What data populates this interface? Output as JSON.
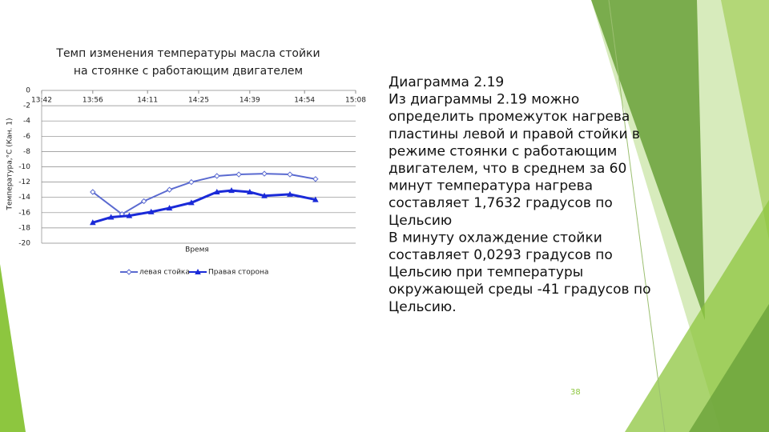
{
  "chart_data": {
    "type": "line",
    "title": [
      "Темп изменения температуры масла стойки",
      "на стоянке с работающим двигателем"
    ],
    "y_label": "Температура,°С (Кан. 1)",
    "x_label": "Время",
    "xlim": [
      "13:42",
      "15:08"
    ],
    "xticks": [
      "13:42",
      "13:56",
      "14:11",
      "14:25",
      "14:39",
      "14:54",
      "15:08"
    ],
    "ylim": [
      -20,
      0
    ],
    "yticks": [
      0,
      -2,
      -4,
      -6,
      -8,
      -10,
      -12,
      -14,
      -16,
      -18,
      -20
    ],
    "grid": true,
    "series": [
      {
        "name": "левая стойка",
        "color": "#5a6ad0",
        "marker": "diamond",
        "x": [
          "13:56",
          "14:04",
          "14:10",
          "14:17",
          "14:23",
          "14:30",
          "14:36",
          "14:43",
          "14:50",
          "14:57"
        ],
        "values": [
          -13.3,
          -16.2,
          -14.5,
          -13,
          -12,
          -11.2,
          -11,
          -10.9,
          -11,
          -11.6
        ]
      },
      {
        "name": "Правая сторона",
        "color": "#1a2ad8",
        "marker": "triangle",
        "x": [
          "13:56",
          "14:01",
          "14:06",
          "14:12",
          "14:17",
          "14:23",
          "14:30",
          "14:34",
          "14:39",
          "14:43",
          "14:50",
          "14:57"
        ],
        "values": [
          -17.3,
          -16.6,
          -16.4,
          -15.9,
          -15.4,
          -14.7,
          -13.3,
          -13.1,
          -13.3,
          -13.8,
          -13.6,
          -14.3
        ]
      }
    ]
  },
  "slide": {
    "text_lines": [
      "Диаграмма 2.19",
      "Из диаграммы 2.19 можно",
      "определить промежуток нагрева",
      "пластины левой и правой стойки в",
      "режиме стоянки с работающим",
      "двигателем, что в среднем за 60",
      "минут температура нагрева",
      "составляет 1,7632 градусов по",
      "Цельсию",
      "В минуту охлаждение стойки",
      "составляет 0,0293 градусов по",
      "Цельсию при температуры",
      "окружающей среды -41 градусов по",
      "Цельсию."
    ],
    "page_number": "38"
  }
}
